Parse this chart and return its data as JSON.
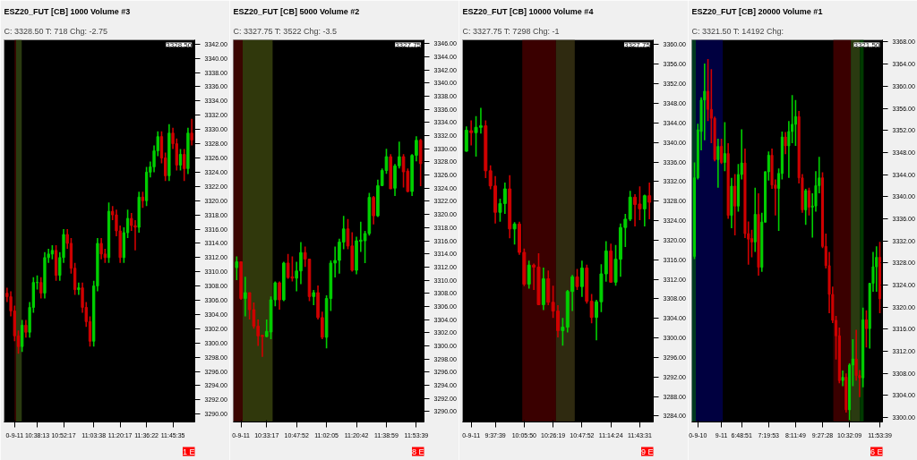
{
  "chart_data": [
    {
      "type": "candlestick",
      "title": "ESZ20_FUT [CB]  1000 Volume  #3",
      "subtitle": "C: 3328.50  T: 718  Chg: -2.75",
      "categories": [
        null,
        null,
        "0-9-11",
        null,
        null,
        null,
        null,
        null,
        "10:38:13",
        null,
        null,
        null,
        null,
        null,
        null,
        "10:52:17",
        null,
        null,
        null,
        null,
        null,
        null,
        null,
        "11:03:38",
        null,
        null,
        null,
        null,
        null,
        null,
        "11:20:17",
        null,
        null,
        null,
        null,
        null,
        null,
        "11:36:22",
        null,
        null,
        null,
        null,
        null,
        null,
        "11:45:35",
        null,
        null,
        null,
        null,
        null
      ],
      "ylim": [
        3288.9,
        3342.6
      ],
      "yticks": [
        {
          "value": 3290,
          "label": "3290.00"
        },
        {
          "value": 3292,
          "label": "3292.00"
        },
        {
          "value": 3294,
          "label": "3294.00"
        },
        {
          "value": 3296,
          "label": "3296.00"
        },
        {
          "value": 3298,
          "label": "3298.00"
        },
        {
          "value": 3300,
          "label": "3300.00"
        },
        {
          "value": 3302,
          "label": "3302.00"
        },
        {
          "value": 3304,
          "label": "3304.00"
        },
        {
          "value": 3306,
          "label": "3306.00"
        },
        {
          "value": 3308,
          "label": "3308.00"
        },
        {
          "value": 3310,
          "label": "3310.00"
        },
        {
          "value": 3312,
          "label": "3312.00"
        },
        {
          "value": 3314,
          "label": "3314.00"
        },
        {
          "value": 3316,
          "label": "3316.00"
        },
        {
          "value": 3318,
          "label": "3318.00"
        },
        {
          "value": 3320,
          "label": "3320.00"
        },
        {
          "value": 3322,
          "label": "3322.00"
        },
        {
          "value": 3324,
          "label": "3324.00"
        },
        {
          "value": 3326,
          "label": "3326.00"
        },
        {
          "value": 3328,
          "label": "3328.00"
        },
        {
          "value": 3330,
          "label": "3330.00"
        },
        {
          "value": 3332,
          "label": "3332.00"
        },
        {
          "value": 3334,
          "label": "3334.00"
        },
        {
          "value": 3336,
          "label": "3336.00"
        },
        {
          "value": 3338,
          "label": "3338.00"
        },
        {
          "value": 3340,
          "label": "3340.00"
        },
        {
          "value": 3342,
          "label": "3342.00"
        }
      ],
      "ohlc": [
        [
          3307,
          3307.75,
          3305.75,
          3306.5
        ],
        [
          3306.5,
          3307.25,
          3303.75,
          3304.5
        ],
        [
          3304.5,
          3305.25,
          3300.25,
          3301
        ],
        [
          3301,
          3301.75,
          3298.5,
          3299.5
        ],
        [
          3299.5,
          3303.25,
          3298.75,
          3302.5
        ],
        [
          3302.5,
          3303.25,
          3300.75,
          3301.5
        ],
        [
          3301.5,
          3305.75,
          3300.75,
          3305
        ],
        [
          3305,
          3309.25,
          3304.25,
          3308.5
        ],
        [
          3308.5,
          3309.5,
          3307.5,
          3308.5
        ],
        [
          3308.5,
          3309.25,
          3306.25,
          3307
        ],
        [
          3307,
          3312.75,
          3306.25,
          3312
        ],
        [
          3312,
          3313.25,
          3311.25,
          3312.5
        ],
        [
          3312.5,
          3313.75,
          3311.75,
          3313
        ],
        [
          3313,
          3313.75,
          3308.75,
          3309.5
        ],
        [
          3309.5,
          3312.75,
          3308.75,
          3312
        ],
        [
          3312,
          3316,
          3311.25,
          3315.25
        ],
        [
          3315.25,
          3316,
          3313.25,
          3314
        ],
        [
          3314,
          3314.75,
          3309.75,
          3310.5
        ],
        [
          3310.5,
          3311.25,
          3306.75,
          3307.5
        ],
        [
          3307.5,
          3308.5,
          3306.75,
          3307.75
        ],
        [
          3307.75,
          3308.5,
          3304.25,
          3305
        ],
        [
          3305,
          3305.75,
          3302.25,
          3303
        ],
        [
          3303,
          3303.75,
          3299.5,
          3300.25
        ],
        [
          3300.25,
          3308.75,
          3299.5,
          3308
        ],
        [
          3308,
          3314.75,
          3307.25,
          3314
        ],
        [
          3314,
          3314.75,
          3311.75,
          3312.5
        ],
        [
          3312.5,
          3313.25,
          3311.25,
          3312
        ],
        [
          3312,
          3319.75,
          3311.25,
          3318.5
        ],
        [
          3318.5,
          3319.25,
          3317.25,
          3318
        ],
        [
          3318,
          3318.75,
          3315,
          3315.75
        ],
        [
          3315.75,
          3316.5,
          3311.25,
          3312
        ],
        [
          3312,
          3316.25,
          3311.25,
          3315.5
        ],
        [
          3315.5,
          3318.75,
          3314.75,
          3317.5
        ],
        [
          3317.5,
          3318.25,
          3315.75,
          3316.5
        ],
        [
          3316.5,
          3317.25,
          3313,
          3316.25
        ],
        [
          3316.25,
          3321.25,
          3315.5,
          3320.5
        ],
        [
          3320.5,
          3321.25,
          3319,
          3320
        ],
        [
          3320,
          3324.75,
          3319.25,
          3324
        ],
        [
          3324,
          3325.5,
          3323.25,
          3324.75
        ],
        [
          3324.75,
          3327.75,
          3324,
          3327
        ],
        [
          3327,
          3329.75,
          3326.25,
          3329
        ],
        [
          3329,
          3329.75,
          3325.25,
          3326
        ],
        [
          3326,
          3326.75,
          3322.75,
          3323.5
        ],
        [
          3323.5,
          3330.75,
          3322.75,
          3329.5
        ],
        [
          3329.5,
          3330.25,
          3327.25,
          3328
        ],
        [
          3328,
          3328.75,
          3324.25,
          3325
        ],
        [
          3325,
          3327.25,
          3324.25,
          3326.5
        ],
        [
          3326.5,
          3327.25,
          3322.75,
          3324.5
        ],
        [
          3324.5,
          3330.25,
          3323.75,
          3329.5
        ],
        [
          3329.5,
          3331.5,
          3327.75,
          3328.5
        ]
      ],
      "colors": [
        "#d00000",
        "#d00000",
        "#d00000",
        "#d00000",
        "#00d000",
        "#d00000",
        "#00d000",
        "#00d000",
        "#00d000",
        "#d00000",
        "#00d000",
        "#00d000",
        "#00d000",
        "#d00000",
        "#00d000",
        "#00d000",
        "#d00000",
        "#d00000",
        "#d00000",
        "#00d000",
        "#d00000",
        "#d00000",
        "#d00000",
        "#00d000",
        "#00d000",
        "#d00000",
        "#d00000",
        "#00d000",
        "#d00000",
        "#d00000",
        "#d00000",
        "#00d000",
        "#00d000",
        "#d00000",
        "#d00000",
        "#00d000",
        "#d00000",
        "#00d000",
        "#00d000",
        "#00d000",
        "#00d000",
        "#d00000",
        "#d00000",
        "#00d000",
        "#d00000",
        "#d00000",
        "#00d000",
        "#d00000",
        "#00d000",
        "#d00000"
      ],
      "annotations": [
        "3328.50",
        "1 E"
      ]
    },
    {
      "type": "candlestick",
      "title": "ESZ20_FUT [CB]  5000 Volume  #2",
      "subtitle": "C: 3327.75  T: 3522  Chg: -3.5",
      "categories": [
        null,
        "0-9-11",
        null,
        null,
        null,
        null,
        null,
        "10:33:17",
        null,
        null,
        null,
        null,
        null,
        null,
        "10:47:52",
        null,
        null,
        null,
        null,
        null,
        null,
        "11:02:05",
        null,
        null,
        null,
        null,
        null,
        null,
        "11:20:42",
        null,
        null,
        null,
        null,
        null,
        null,
        "11:38:59",
        null,
        null,
        null,
        null,
        null,
        null,
        "11:53:39",
        null
      ],
      "ylim": [
        3288.4,
        3346.6
      ],
      "yticks": [
        {
          "value": 3290,
          "label": "3290.00"
        },
        {
          "value": 3292,
          "label": "3292.00"
        },
        {
          "value": 3294,
          "label": "3294.00"
        },
        {
          "value": 3296,
          "label": "3296.00"
        },
        {
          "value": 3298,
          "label": "3298.00"
        },
        {
          "value": 3300,
          "label": "3300.00"
        },
        {
          "value": 3302,
          "label": "3302.00"
        },
        {
          "value": 3304,
          "label": "3304.00"
        },
        {
          "value": 3306,
          "label": "3306.00"
        },
        {
          "value": 3308,
          "label": "3308.00"
        },
        {
          "value": 3310,
          "label": "3310.00"
        },
        {
          "value": 3312,
          "label": "3312.00"
        },
        {
          "value": 3314,
          "label": "3314.00"
        },
        {
          "value": 3316,
          "label": "3316.00"
        },
        {
          "value": 3318,
          "label": "3318.00"
        },
        {
          "value": 3320,
          "label": "3320.00"
        },
        {
          "value": 3322,
          "label": "3322.00"
        },
        {
          "value": 3324,
          "label": "3324.00"
        },
        {
          "value": 3326,
          "label": "3326.00"
        },
        {
          "value": 3328,
          "label": "3328.00"
        },
        {
          "value": 3330,
          "label": "3330.00"
        },
        {
          "value": 3332,
          "label": "3332.00"
        },
        {
          "value": 3334,
          "label": "3334.00"
        },
        {
          "value": 3336,
          "label": "3336.00"
        },
        {
          "value": 3338,
          "label": "3338.00"
        },
        {
          "value": 3340,
          "label": "3340.00"
        },
        {
          "value": 3342,
          "label": "3342.00"
        },
        {
          "value": 3344,
          "label": "3344.00"
        },
        {
          "value": 3346,
          "label": "3346.00"
        }
      ],
      "ohlc": [
        [
          3311.9,
          3313.6,
          3310,
          3312.8
        ],
        [
          3312.8,
          3312.8,
          3307,
          3307.2
        ],
        [
          3307.2,
          3310.5,
          3304.5,
          3308.1
        ],
        [
          3308.1,
          3308.1,
          3304,
          3305.5
        ],
        [
          3305.5,
          3306.6,
          3302.6,
          3303
        ],
        [
          3303,
          3304,
          3300,
          3301.5
        ],
        [
          3301.6,
          3301.7,
          3298.3,
          3301.4
        ],
        [
          3301.4,
          3304,
          3301.3,
          3302.2
        ],
        [
          3302.1,
          3307.5,
          3301,
          3307
        ],
        [
          3307,
          3309.8,
          3306,
          3309.6
        ],
        [
          3309.6,
          3309.8,
          3305.5,
          3307
        ],
        [
          3307,
          3312.8,
          3306.8,
          3312.6
        ],
        [
          3312.6,
          3314,
          3310.2,
          3310.4
        ],
        [
          3310.5,
          3313.6,
          3309.8,
          3310.3
        ],
        [
          3310.3,
          3312.8,
          3308.3,
          3311.4
        ],
        [
          3311.4,
          3315.8,
          3309.4,
          3314.2
        ],
        [
          3314.2,
          3315.1,
          3312,
          3313.2
        ],
        [
          3313.2,
          3313.2,
          3306.8,
          3307.5
        ],
        [
          3307.5,
          3308.5,
          3306.2,
          3308.1
        ],
        [
          3308.1,
          3309.2,
          3304,
          3304.3
        ],
        [
          3304.3,
          3305.2,
          3301,
          3301.3
        ],
        [
          3301.3,
          3307.7,
          3299.6,
          3307.2
        ],
        [
          3307.2,
          3313,
          3305.3,
          3312.6
        ],
        [
          3312.6,
          3315.1,
          3310.4,
          3313
        ],
        [
          3313,
          3316.3,
          3311,
          3315.8
        ],
        [
          3315.8,
          3319.8,
          3314.7,
          3317.8
        ],
        [
          3317.8,
          3319.3,
          3314.7,
          3315.2
        ],
        [
          3315.2,
          3317.3,
          3311.3,
          3311.5
        ],
        [
          3311.5,
          3316.6,
          3310.9,
          3316
        ],
        [
          3315.9,
          3318.9,
          3314.3,
          3316.1
        ],
        [
          3316,
          3317.5,
          3312.6,
          3317.1
        ],
        [
          3317.1,
          3323.3,
          3316.8,
          3322.6
        ],
        [
          3322.6,
          3322.8,
          3318.5,
          3319.8
        ],
        [
          3319.8,
          3325.3,
          3319.6,
          3324.4
        ],
        [
          3324.4,
          3327,
          3324.3,
          3326.7
        ],
        [
          3326.7,
          3330,
          3326.2,
          3328.8
        ],
        [
          3328.8,
          3329.2,
          3323.9,
          3323.9
        ],
        [
          3324,
          3327.7,
          3322.8,
          3327.4
        ],
        [
          3327.4,
          3331.1,
          3327,
          3328.8
        ],
        [
          3328.8,
          3329.2,
          3324.1,
          3326.5
        ],
        [
          3326.6,
          3327,
          3323.4,
          3323.5
        ],
        [
          3323.5,
          3329.2,
          3322.8,
          3329
        ],
        [
          3329,
          3331.9,
          3328.1,
          3331.3
        ],
        [
          3331.3,
          3331.5,
          3324.3,
          3327.75
        ]
      ],
      "colors": [
        "#00d000",
        "#d00000",
        "#00d000",
        "#d00000",
        "#d00000",
        "#d00000",
        "#d00000",
        "#00d000",
        "#00d000",
        "#00d000",
        "#d00000",
        "#00d000",
        "#d00000",
        "#d00000",
        "#00d000",
        "#00d000",
        "#d00000",
        "#d00000",
        "#00d000",
        "#d00000",
        "#d00000",
        "#00d000",
        "#00d000",
        "#00d000",
        "#00d000",
        "#00d000",
        "#d00000",
        "#d00000",
        "#00d000",
        "#00d000",
        "#00d000",
        "#00d000",
        "#d00000",
        "#00d000",
        "#00d000",
        "#00d000",
        "#d00000",
        "#00d000",
        "#00d000",
        "#d00000",
        "#d00000",
        "#00d000",
        "#00d000",
        "#d00000"
      ],
      "annotations": [
        "3327.75",
        "8 E"
      ]
    },
    {
      "type": "candlestick",
      "title": "ESZ20_FUT [CB]  10000 Volume  #4",
      "subtitle": "C: 3327.75  T: 7298  Chg: -1",
      "categories": [
        null,
        "0-9-11",
        null,
        null,
        null,
        null,
        "9:37:39",
        null,
        null,
        null,
        null,
        null,
        "10:05:50",
        null,
        null,
        null,
        null,
        null,
        "10:26:19",
        null,
        null,
        null,
        null,
        null,
        "10:47:52",
        null,
        null,
        null,
        null,
        null,
        "11:14:24",
        null,
        null,
        null,
        null,
        null,
        "11:43:31",
        null,
        null
      ],
      "ylim": [
        3282.8,
        3361.0
      ],
      "yticks": [
        {
          "value": 3284,
          "label": "3284.00"
        },
        {
          "value": 3288,
          "label": "3288.00"
        },
        {
          "value": 3292,
          "label": "3292.00"
        },
        {
          "value": 3296,
          "label": "3296.00"
        },
        {
          "value": 3300,
          "label": "3300.00"
        },
        {
          "value": 3304,
          "label": "3304.00"
        },
        {
          "value": 3308,
          "label": "3308.00"
        },
        {
          "value": 3312,
          "label": "3312.00"
        },
        {
          "value": 3316,
          "label": "3316.00"
        },
        {
          "value": 3320,
          "label": "3320.00"
        },
        {
          "value": 3324,
          "label": "3324.00"
        },
        {
          "value": 3328,
          "label": "3328.00"
        },
        {
          "value": 3332,
          "label": "3332.00"
        },
        {
          "value": 3336,
          "label": "3336.00"
        },
        {
          "value": 3340,
          "label": "3340.00"
        },
        {
          "value": 3344,
          "label": "3344.00"
        },
        {
          "value": 3348,
          "label": "3348.00"
        },
        {
          "value": 3352,
          "label": "3352.00"
        },
        {
          "value": 3356,
          "label": "3356.00"
        },
        {
          "value": 3360,
          "label": "3360.00"
        }
      ],
      "ohlc": [
        [
          3338.2,
          3343.3,
          3338.1,
          3342.5
        ],
        [
          3342.4,
          3344.5,
          3339.4,
          3342
        ],
        [
          3342,
          3345.4,
          3337.1,
          3343.1
        ],
        [
          3343.1,
          3347.1,
          3341.8,
          3343.4
        ],
        [
          3343.4,
          3344.5,
          3332.7,
          3334.2
        ],
        [
          3334.2,
          3335.3,
          3330.4,
          3331.1
        ],
        [
          3331.1,
          3333.1,
          3323.4,
          3325.7
        ],
        [
          3325.7,
          3328.5,
          3323.8,
          3327.5
        ],
        [
          3327.5,
          3331.8,
          3325.4,
          3330.5
        ],
        [
          3330.5,
          3333.3,
          3320.4,
          3322.3
        ],
        [
          3322.3,
          3323.7,
          3319.1,
          3323.3
        ],
        [
          3323.3,
          3323.8,
          3317,
          3317.5
        ],
        [
          3317.5,
          3318.3,
          3310.6,
          3311
        ],
        [
          3311,
          3315.8,
          3310.1,
          3314.9
        ],
        [
          3314.9,
          3315.2,
          3309.8,
          3314.5
        ],
        [
          3314.5,
          3317.3,
          3306.7,
          3306.8
        ],
        [
          3306.8,
          3314.4,
          3305.7,
          3312.1
        ],
        [
          3312.1,
          3313.8,
          3306.7,
          3307.3
        ],
        [
          3307.3,
          3310.7,
          3304.1,
          3305.5
        ],
        [
          3305.5,
          3306.7,
          3300.1,
          3301.5
        ],
        [
          3301.5,
          3304.1,
          3298.4,
          3302.2
        ],
        [
          3302.2,
          3309.8,
          3301.1,
          3309.5
        ],
        [
          3309.5,
          3312.9,
          3305.5,
          3312.5
        ],
        [
          3312.5,
          3314.1,
          3309.8,
          3310.5
        ],
        [
          3310.5,
          3315.8,
          3308.4,
          3314.3
        ],
        [
          3314.3,
          3315,
          3307,
          3307.5
        ],
        [
          3307.5,
          3309,
          3303,
          3304.2
        ],
        [
          3304.2,
          3307.8,
          3299.5,
          3307.4
        ],
        [
          3307.4,
          3315.1,
          3305.3,
          3313.1
        ],
        [
          3313.1,
          3319.8,
          3311.5,
          3317.8
        ],
        [
          3317.8,
          3319.3,
          3311.3,
          3311.4
        ],
        [
          3311.4,
          3319,
          3310.7,
          3316.1
        ],
        [
          3316.1,
          3323.4,
          3312.5,
          3322.6
        ],
        [
          3322.6,
          3325.4,
          3318.6,
          3324.3
        ],
        [
          3324.3,
          3330.1,
          3323.9,
          3328.8
        ],
        [
          3328.8,
          3329.4,
          3322.8,
          3327.3
        ],
        [
          3327.4,
          3331,
          3324.1,
          3326.4
        ],
        [
          3326.4,
          3329.3,
          3322.8,
          3329.1
        ],
        [
          3329.1,
          3331.8,
          3324.3,
          3327.75
        ]
      ],
      "colors": [
        "#00d000",
        "#d00000",
        "#00d000",
        "#00d000",
        "#d00000",
        "#d00000",
        "#d00000",
        "#00d000",
        "#00d000",
        "#d00000",
        "#00d000",
        "#d00000",
        "#d00000",
        "#00d000",
        "#d00000",
        "#d00000",
        "#00d000",
        "#d00000",
        "#d00000",
        "#d00000",
        "#00d000",
        "#00d000",
        "#00d000",
        "#d00000",
        "#00d000",
        "#d00000",
        "#d00000",
        "#00d000",
        "#00d000",
        "#00d000",
        "#d00000",
        "#00d000",
        "#00d000",
        "#00d000",
        "#00d000",
        "#d00000",
        "#d00000",
        "#00d000",
        "#d00000"
      ],
      "annotations": [
        "3327.75",
        "9 E"
      ]
    },
    {
      "type": "candlestick",
      "title": "ESZ20_FUT [CB]  20000 Volume  #1",
      "subtitle": "C: 3321.50  T: 14192  Chg:",
      "categories": [
        null,
        "0-9-10",
        null,
        null,
        null,
        null,
        null,
        null,
        "9-11",
        null,
        null,
        null,
        null,
        null,
        "6:48:51",
        null,
        null,
        null,
        null,
        null,
        null,
        null,
        "7:19:53",
        null,
        null,
        null,
        null,
        null,
        null,
        null,
        "8:11:49",
        null,
        null,
        null,
        null,
        null,
        null,
        null,
        "9:27:28",
        null,
        null,
        null,
        null,
        null,
        null,
        null,
        "10:32:09",
        null,
        null,
        null,
        null,
        null,
        null,
        null,
        null,
        "11:53:39"
      ],
      "ylim": [
        3299.2,
        3368.4
      ],
      "yticks": [
        {
          "value": 3300,
          "label": "3300.00"
        },
        {
          "value": 3304,
          "label": "3304.00"
        },
        {
          "value": 3308,
          "label": "3308.00"
        },
        {
          "value": 3312,
          "label": "3312.00"
        },
        {
          "value": 3316,
          "label": "3316.00"
        },
        {
          "value": 3320,
          "label": "3320.00"
        },
        {
          "value": 3324,
          "label": "3324.00"
        },
        {
          "value": 3328,
          "label": "3328.00"
        },
        {
          "value": 3332,
          "label": "3332.00"
        },
        {
          "value": 3336,
          "label": "3336.00"
        },
        {
          "value": 3340,
          "label": "3340.00"
        },
        {
          "value": 3344,
          "label": "3344.00"
        },
        {
          "value": 3348,
          "label": "3348.00"
        },
        {
          "value": 3352,
          "label": "3352.00"
        },
        {
          "value": 3356,
          "label": "3356.00"
        },
        {
          "value": 3360,
          "label": "3360.00"
        },
        {
          "value": 3364,
          "label": "3364.00"
        },
        {
          "value": 3368,
          "label": "3368.00"
        }
      ],
      "ohlc": [
        [
          3329.2,
          3346.2,
          3328.7,
          3343.4
        ],
        [
          3343.4,
          3353.2,
          3343.1,
          3352.1
        ],
        [
          3351.8,
          3358,
          3348.4,
          3357.5
        ],
        [
          3357.5,
          3364.1,
          3350.2,
          3359.1
        ],
        [
          3359.1,
          3364.9,
          3353.7,
          3355.8
        ],
        [
          3355.8,
          3363.1,
          3349.7,
          3354.2
        ],
        [
          3354.2,
          3354.5,
          3346.4,
          3346.7
        ],
        [
          3346.7,
          3350.5,
          3341.6,
          3349.1
        ],
        [
          3349.1,
          3350.5,
          3345.9,
          3346.2
        ],
        [
          3346.2,
          3353.5,
          3344.6,
          3347.8
        ],
        [
          3347.8,
          3349.7,
          3336,
          3336.6
        ],
        [
          3336.6,
          3343.4,
          3334.3,
          3341.9
        ],
        [
          3341.9,
          3344.1,
          3333,
          3338.3
        ],
        [
          3338.3,
          3345.9,
          3337.3,
          3344
        ],
        [
          3344,
          3352.2,
          3343.1,
          3346.1
        ],
        [
          3346.1,
          3348.7,
          3332.5,
          3333.3
        ],
        [
          3333.3,
          3335.5,
          3327.7,
          3332.3
        ],
        [
          3332.4,
          3334,
          3329,
          3331.8
        ],
        [
          3331.8,
          3341.6,
          3330,
          3336.8
        ],
        [
          3336.8,
          3340.6,
          3325.7,
          3327.2
        ],
        [
          3327.2,
          3337.1,
          3326.4,
          3335.4
        ],
        [
          3335.4,
          3344.6,
          3335.3,
          3344.5
        ],
        [
          3344.5,
          3348.2,
          3342.9,
          3347.5
        ],
        [
          3347.5,
          3348.7,
          3341.4,
          3342.1
        ],
        [
          3342.1,
          3343.1,
          3336.6,
          3341.5
        ],
        [
          3341.5,
          3345.1,
          3333.8,
          3344.2
        ],
        [
          3344.2,
          3351.8,
          3343.1,
          3350.8
        ],
        [
          3350.8,
          3351.7,
          3347.7,
          3349.2
        ],
        [
          3349.2,
          3353.7,
          3343.4,
          3351.8
        ],
        [
          3351.8,
          3358.4,
          3349.7,
          3353.1
        ],
        [
          3353.1,
          3357.5,
          3349.2,
          3354.5
        ],
        [
          3354.5,
          3355.5,
          3342.4,
          3343.4
        ],
        [
          3343.4,
          3344.1,
          3337.1,
          3337.6
        ],
        [
          3337.6,
          3341.4,
          3334.9,
          3341.1
        ],
        [
          3341.1,
          3341.6,
          3336.6,
          3338.1
        ],
        [
          3338.1,
          3340.6,
          3332.6,
          3338.3
        ],
        [
          3338.3,
          3344.6,
          3337.3,
          3342
        ],
        [
          3342,
          3347.2,
          3340.6,
          3343.4
        ],
        [
          3343.4,
          3344.4,
          3330.7,
          3331
        ],
        [
          3331,
          3333.3,
          3327,
          3327.5
        ],
        [
          3327.5,
          3330,
          3318.9,
          3322.3
        ],
        [
          3322.3,
          3323.7,
          3317.1,
          3317.6
        ],
        [
          3317.6,
          3318.4,
          3310.5,
          3314.8
        ],
        [
          3314.8,
          3316.3,
          3306.2,
          3306.7
        ],
        [
          3306.7,
          3308.5,
          3305.7,
          3307.3
        ],
        [
          3307.3,
          3308,
          3300.9,
          3301.4
        ],
        [
          3301.4,
          3309.8,
          3299.4,
          3309.5
        ],
        [
          3309.5,
          3314.2,
          3305.7,
          3310.6
        ],
        [
          3310.6,
          3315.9,
          3306.7,
          3307.6
        ],
        [
          3307.6,
          3308.6,
          3303.7,
          3307.2
        ],
        [
          3307.2,
          3319.9,
          3305.5,
          3317.7
        ],
        [
          3317.7,
          3319.4,
          3312.7,
          3316.1
        ],
        [
          3316.1,
          3324.4,
          3312.5,
          3324.3
        ],
        [
          3324.3,
          3330,
          3322.8,
          3327.3
        ],
        [
          3327.3,
          3331,
          3322.8,
          3329
        ],
        [
          3329,
          3331.8,
          3318.9,
          3321.5
        ]
      ],
      "colors": [
        "#00d000",
        "#00d000",
        "#00d000",
        "#00d000",
        "#d00000",
        "#d00000",
        "#d00000",
        "#00d000",
        "#d00000",
        "#00d000",
        "#d00000",
        "#00d000",
        "#d00000",
        "#00d000",
        "#00d000",
        "#d00000",
        "#d00000",
        "#d00000",
        "#00d000",
        "#d00000",
        "#00d000",
        "#00d000",
        "#00d000",
        "#d00000",
        "#d00000",
        "#00d000",
        "#00d000",
        "#d00000",
        "#00d000",
        "#00d000",
        "#00d000",
        "#d00000",
        "#d00000",
        "#00d000",
        "#d00000",
        "#00d000",
        "#00d000",
        "#00d000",
        "#d00000",
        "#d00000",
        "#d00000",
        "#d00000",
        "#d00000",
        "#d00000",
        "#00d000",
        "#d00000",
        "#00d000",
        "#00d000",
        "#d00000",
        "#d00000",
        "#00d000",
        "#d00000",
        "#00d000",
        "#00d000",
        "#00d000",
        "#d00000"
      ],
      "annotations": [
        "3321.50",
        "6 E"
      ]
    }
  ]
}
